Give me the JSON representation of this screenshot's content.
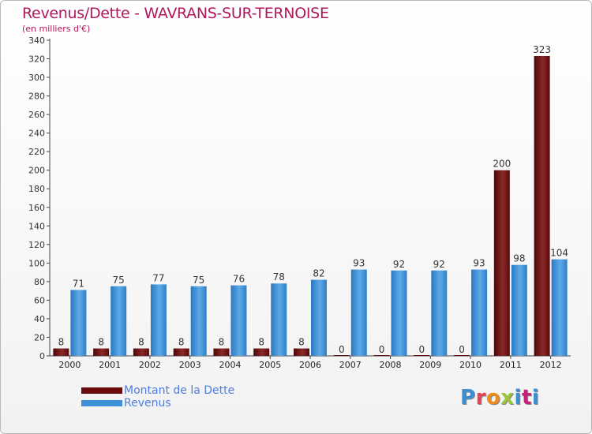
{
  "chart_data": {
    "type": "bar",
    "title": "Revenus/Dette - WAVRANS-SUR-TERNOISE",
    "subtitle": "(en milliers d'€)",
    "categories": [
      "2000",
      "2001",
      "2002",
      "2003",
      "2004",
      "2005",
      "2006",
      "2007",
      "2008",
      "2009",
      "2010",
      "2011",
      "2012"
    ],
    "series": [
      {
        "name": "Montant de la Dette",
        "color": "#6b0d0d",
        "values": [
          8,
          8,
          8,
          8,
          8,
          8,
          8,
          0,
          0,
          0,
          0,
          200,
          323
        ]
      },
      {
        "name": "Revenus",
        "color": "#3d8fd6",
        "values": [
          71,
          75,
          77,
          75,
          76,
          78,
          82,
          93,
          92,
          92,
          93,
          98,
          104
        ]
      }
    ],
    "ylim": [
      0,
      340
    ],
    "ytick_step": 20,
    "grid": false,
    "legend": "bottom-left"
  },
  "logo": {
    "letters": [
      "P",
      "r",
      "o",
      "x",
      "i",
      "t",
      "i"
    ]
  }
}
